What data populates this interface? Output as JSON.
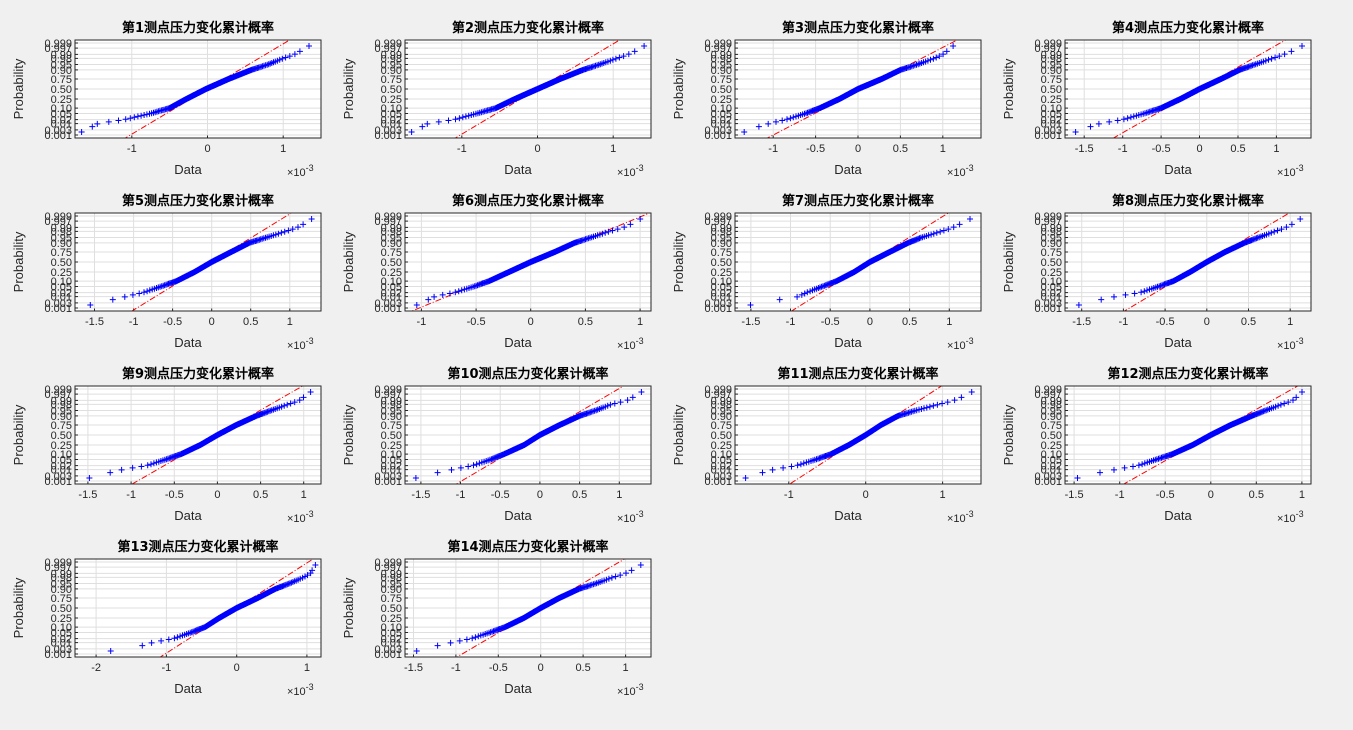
{
  "figure": {
    "background": "#f0f0f0",
    "axes_background": "#ffffff",
    "marker_color": "#0000ff",
    "ref_line_color": "#ff0000",
    "grid_color": "#dfdfdf"
  },
  "chart_data": [
    {
      "type": "scatter",
      "title": "第1测点压力变化累计概率",
      "xlabel": "Data",
      "ylabel": "Probability",
      "x_exponent": "×10",
      "x_exponent_power": "-3",
      "xlim": [
        -1.75,
        1.5
      ],
      "xticks": [
        -1,
        0,
        1
      ],
      "xticklabels": [
        "-1",
        "0",
        "1"
      ],
      "yticklabels": [
        "0.001",
        "0.003",
        "0.01",
        "0.02",
        "0.05",
        "0.10",
        "0.25",
        "0.50",
        "0.75",
        "0.90",
        "0.95",
        "0.98",
        "0.99",
        "0.997",
        "0.999"
      ],
      "quantiles": [
        -1.75,
        -1.6,
        -1.45,
        -1.1,
        -0.75,
        -0.5,
        -0.28,
        -0.02,
        0.28,
        0.58,
        0.8,
        1.0,
        1.15,
        1.3,
        1.4
      ],
      "ref_line": {
        "mean": 0.0,
        "sd": 0.33
      },
      "grid": true
    },
    {
      "type": "scatter",
      "title": "第2测点压力变化累计概率",
      "xlabel": "Data",
      "ylabel": "Probability",
      "x_exponent": "×10",
      "x_exponent_power": "-3",
      "xlim": [
        -1.75,
        1.5
      ],
      "xticks": [
        -1,
        0,
        1
      ],
      "xticklabels": [
        "-1",
        "0",
        "1"
      ],
      "yticklabels": [
        "0.001",
        "0.003",
        "0.01",
        "0.02",
        "0.05",
        "0.10",
        "0.25",
        "0.50",
        "0.75",
        "0.90",
        "0.95",
        "0.98",
        "0.99",
        "0.997",
        "0.999"
      ],
      "quantiles": [
        -1.75,
        -1.6,
        -1.45,
        -1.1,
        -0.8,
        -0.55,
        -0.3,
        0.0,
        0.3,
        0.6,
        0.82,
        1.05,
        1.2,
        1.38,
        1.45
      ],
      "ref_line": {
        "mean": 0.0,
        "sd": 0.33
      },
      "grid": true
    },
    {
      "type": "scatter",
      "title": "第3测点压力变化累计概率",
      "xlabel": "Data",
      "ylabel": "Probability",
      "x_exponent": "×10",
      "x_exponent_power": "-3",
      "xlim": [
        -1.45,
        1.45
      ],
      "xticks": [
        -1,
        -0.5,
        0,
        0.5,
        1
      ],
      "xticklabels": [
        "-1",
        "-0.5",
        "0",
        "0.5",
        "1"
      ],
      "yticklabels": [
        "0.001",
        "0.003",
        "0.01",
        "0.02",
        "0.05",
        "0.10",
        "0.25",
        "0.50",
        "0.75",
        "0.90",
        "0.95",
        "0.98",
        "0.99",
        "0.997",
        "0.999"
      ],
      "quantiles": [
        -1.4,
        -1.3,
        -1.05,
        -0.85,
        -0.62,
        -0.45,
        -0.22,
        0.0,
        0.28,
        0.5,
        0.7,
        0.9,
        1.0,
        1.1,
        1.15
      ],
      "ref_line": {
        "mean": 0.05,
        "sd": 0.34
      },
      "grid": true
    },
    {
      "type": "scatter",
      "title": "第4测点压力变化累计概率",
      "xlabel": "Data",
      "ylabel": "Probability",
      "x_exponent": "×10",
      "x_exponent_power": "-3",
      "xlim": [
        -1.75,
        1.45
      ],
      "xticks": [
        -1.5,
        -1,
        -0.5,
        0,
        0.5,
        1
      ],
      "xticklabels": [
        "-1.5",
        "-1",
        "-0.5",
        "0",
        "0.5",
        "1"
      ],
      "yticklabels": [
        "0.001",
        "0.003",
        "0.01",
        "0.02",
        "0.05",
        "0.10",
        "0.25",
        "0.50",
        "0.75",
        "0.90",
        "0.95",
        "0.98",
        "0.99",
        "0.997",
        "0.999"
      ],
      "quantiles": [
        -1.7,
        -1.55,
        -1.3,
        -1.0,
        -0.72,
        -0.5,
        -0.25,
        0.0,
        0.28,
        0.52,
        0.72,
        0.95,
        1.1,
        1.3,
        1.38
      ],
      "ref_line": {
        "mean": 0.0,
        "sd": 0.34
      },
      "grid": true
    },
    {
      "type": "scatter",
      "title": "第5测点压力变化累计概率",
      "xlabel": "Data",
      "ylabel": "Probability",
      "x_exponent": "×10",
      "x_exponent_power": "-3",
      "xlim": [
        -1.75,
        1.4
      ],
      "xticks": [
        -1.5,
        -1,
        -0.5,
        0,
        0.5,
        1
      ],
      "xticklabels": [
        "-1.5",
        "-1",
        "-0.5",
        "0",
        "0.5",
        "1"
      ],
      "yticklabels": [
        "0.001",
        "0.003",
        "0.01",
        "0.02",
        "0.05",
        "0.10",
        "0.25",
        "0.50",
        "0.75",
        "0.90",
        "0.95",
        "0.98",
        "0.99",
        "0.997",
        "0.999"
      ],
      "quantiles": [
        -1.7,
        -1.45,
        -1.1,
        -0.88,
        -0.65,
        -0.45,
        -0.22,
        0.0,
        0.25,
        0.48,
        0.7,
        0.95,
        1.1,
        1.25,
        1.32
      ],
      "ref_line": {
        "mean": 0.0,
        "sd": 0.31
      },
      "grid": true
    },
    {
      "type": "scatter",
      "title": "第6测点压力变化累计概率",
      "xlabel": "Data",
      "ylabel": "Probability",
      "x_exponent": "×10",
      "x_exponent_power": "-3",
      "xlim": [
        -1.15,
        1.1
      ],
      "xticks": [
        -1,
        -0.5,
        0,
        0.5,
        1
      ],
      "xticklabels": [
        "-1",
        "-0.5",
        "0",
        "0.5",
        "1"
      ],
      "yticklabels": [
        "0.001",
        "0.003",
        "0.01",
        "0.02",
        "0.05",
        "0.10",
        "0.25",
        "0.50",
        "0.75",
        "0.90",
        "0.95",
        "0.98",
        "0.99",
        "0.997",
        "0.999"
      ],
      "quantiles": [
        -1.1,
        -1.0,
        -0.88,
        -0.7,
        -0.52,
        -0.38,
        -0.2,
        0.0,
        0.22,
        0.4,
        0.55,
        0.72,
        0.85,
        0.98,
        1.03
      ],
      "ref_line": {
        "mean": 0.0,
        "sd": 0.33
      },
      "grid": true
    },
    {
      "type": "scatter",
      "title": "第7测点压力变化累计概率",
      "xlabel": "Data",
      "ylabel": "Probability",
      "x_exponent": "×10",
      "x_exponent_power": "-3",
      "xlim": [
        -1.7,
        1.4
      ],
      "xticks": [
        -1.5,
        -1,
        -0.5,
        0,
        0.5,
        1
      ],
      "xticklabels": [
        "-1.5",
        "-1",
        "-0.5",
        "0",
        "0.5",
        "1"
      ],
      "yticklabels": [
        "0.001",
        "0.003",
        "0.01",
        "0.02",
        "0.05",
        "0.10",
        "0.25",
        "0.50",
        "0.75",
        "0.90",
        "0.95",
        "0.98",
        "0.99",
        "0.997",
        "0.999"
      ],
      "quantiles": [
        -1.65,
        -1.4,
        -0.9,
        -0.8,
        -0.6,
        -0.42,
        -0.2,
        0.0,
        0.25,
        0.48,
        0.65,
        0.9,
        1.05,
        1.22,
        1.32
      ],
      "ref_line": {
        "mean": 0.0,
        "sd": 0.3
      },
      "grid": true
    },
    {
      "type": "scatter",
      "title": "第8测点压力变化累计概率",
      "xlabel": "Data",
      "ylabel": "Probability",
      "x_exponent": "×10",
      "x_exponent_power": "-3",
      "xlim": [
        -1.7,
        1.25
      ],
      "xticks": [
        -1.5,
        -1,
        -0.5,
        0,
        0.5,
        1
      ],
      "xticklabels": [
        "-1.5",
        "-1",
        "-0.5",
        "0",
        "0.5",
        "1"
      ],
      "yticklabels": [
        "0.001",
        "0.003",
        "0.01",
        "0.02",
        "0.05",
        "0.10",
        "0.25",
        "0.50",
        "0.75",
        "0.90",
        "0.95",
        "0.98",
        "0.99",
        "0.997",
        "0.999"
      ],
      "quantiles": [
        -1.65,
        -1.45,
        -1.1,
        -0.8,
        -0.58,
        -0.4,
        -0.2,
        0.0,
        0.22,
        0.45,
        0.62,
        0.82,
        0.95,
        1.1,
        1.15
      ],
      "ref_line": {
        "mean": 0.0,
        "sd": 0.3
      },
      "grid": true
    },
    {
      "type": "scatter",
      "title": "第9测点压力变化累计概率",
      "xlabel": "Data",
      "ylabel": "Probability",
      "x_exponent": "×10",
      "x_exponent_power": "-3",
      "xlim": [
        -1.65,
        1.2
      ],
      "xticks": [
        -1.5,
        -1,
        -0.5,
        0,
        0.5,
        1
      ],
      "xticklabels": [
        "-1.5",
        "-1",
        "-0.5",
        "0",
        "0.5",
        "1"
      ],
      "yticklabels": [
        "0.001",
        "0.003",
        "0.01",
        "0.02",
        "0.05",
        "0.10",
        "0.25",
        "0.50",
        "0.75",
        "0.90",
        "0.95",
        "0.98",
        "0.99",
        "0.997",
        "0.999"
      ],
      "quantiles": [
        -1.6,
        -1.4,
        -1.1,
        -0.82,
        -0.6,
        -0.42,
        -0.2,
        0.0,
        0.22,
        0.45,
        0.62,
        0.82,
        0.95,
        1.05,
        1.12
      ],
      "ref_line": {
        "mean": 0.0,
        "sd": 0.3
      },
      "grid": true
    },
    {
      "type": "scatter",
      "title": "第10测点压力变化累计概率",
      "xlabel": "Data",
      "ylabel": "Probability",
      "x_exponent": "×10",
      "x_exponent_power": "-3",
      "xlim": [
        -1.7,
        1.4
      ],
      "xticks": [
        -1.5,
        -1,
        -0.5,
        0,
        0.5,
        1
      ],
      "xticklabels": [
        "-1.5",
        "-1",
        "-0.5",
        "0",
        "0.5",
        "1"
      ],
      "yticklabels": [
        "0.001",
        "0.003",
        "0.01",
        "0.02",
        "0.05",
        "0.10",
        "0.25",
        "0.50",
        "0.75",
        "0.90",
        "0.95",
        "0.98",
        "0.99",
        "0.997",
        "0.999"
      ],
      "quantiles": [
        -1.65,
        -1.5,
        -1.1,
        -0.85,
        -0.62,
        -0.45,
        -0.2,
        0.0,
        0.25,
        0.5,
        0.7,
        0.9,
        1.1,
        1.25,
        1.32
      ],
      "ref_line": {
        "mean": 0.0,
        "sd": 0.32
      },
      "grid": true
    },
    {
      "type": "scatter",
      "title": "第11测点压力变化累计概率",
      "xlabel": "Data",
      "ylabel": "Probability",
      "x_exponent": "×10",
      "x_exponent_power": "-3",
      "xlim": [
        -1.7,
        1.5
      ],
      "xticks": [
        -1,
        0,
        1
      ],
      "xticklabels": [
        "-1",
        "0",
        "1"
      ],
      "yticklabels": [
        "0.001",
        "0.003",
        "0.01",
        "0.02",
        "0.05",
        "0.10",
        "0.25",
        "0.50",
        "0.75",
        "0.90",
        "0.95",
        "0.98",
        "0.99",
        "0.997",
        "0.999"
      ],
      "quantiles": [
        -1.65,
        -1.5,
        -1.2,
        -0.9,
        -0.65,
        -0.45,
        -0.22,
        0.0,
        0.2,
        0.42,
        0.65,
        0.95,
        1.15,
        1.35,
        1.42
      ],
      "ref_line": {
        "mean": 0.0,
        "sd": 0.3
      },
      "grid": true
    },
    {
      "type": "scatter",
      "title": "第12测点压力变化累计概率",
      "xlabel": "Data",
      "ylabel": "Probability",
      "x_exponent": "×10",
      "x_exponent_power": "-3",
      "xlim": [
        -1.6,
        1.1
      ],
      "xticks": [
        -1.5,
        -1,
        -0.5,
        0,
        0.5,
        1
      ],
      "xticklabels": [
        "-1.5",
        "-1",
        "-0.5",
        "0",
        "0.5",
        "1"
      ],
      "yticklabels": [
        "0.001",
        "0.003",
        "0.01",
        "0.02",
        "0.05",
        "0.10",
        "0.25",
        "0.50",
        "0.75",
        "0.90",
        "0.95",
        "0.98",
        "0.99",
        "0.997",
        "0.999"
      ],
      "quantiles": [
        -1.55,
        -1.4,
        -1.05,
        -0.8,
        -0.6,
        -0.42,
        -0.2,
        0.0,
        0.22,
        0.45,
        0.6,
        0.78,
        0.9,
        0.98,
        1.03
      ],
      "ref_line": {
        "mean": 0.0,
        "sd": 0.29
      },
      "grid": true
    },
    {
      "type": "scatter",
      "title": "第13测点压力变化累计概率",
      "xlabel": "Data",
      "ylabel": "Probability",
      "x_exponent": "×10",
      "x_exponent_power": "-3",
      "xlim": [
        -2.3,
        1.2
      ],
      "xticks": [
        -2,
        -1,
        0,
        1
      ],
      "xticklabels": [
        "-2",
        "-1",
        "0",
        "1"
      ],
      "yticklabels": [
        "0.001",
        "0.003",
        "0.01",
        "0.02",
        "0.05",
        "0.10",
        "0.25",
        "0.50",
        "0.75",
        "0.90",
        "0.95",
        "0.98",
        "0.99",
        "0.997",
        "0.999"
      ],
      "quantiles": [
        -2.2,
        -1.5,
        -1.2,
        -0.9,
        -0.65,
        -0.45,
        -0.25,
        0.0,
        0.3,
        0.55,
        0.75,
        0.95,
        1.05,
        1.1,
        1.15
      ],
      "ref_line": {
        "mean": 0.0,
        "sd": 0.33
      },
      "grid": true
    },
    {
      "type": "scatter",
      "title": "第14测点压力变化累计概率",
      "xlabel": "Data",
      "ylabel": "Probability",
      "x_exponent": "×10",
      "x_exponent_power": "-3",
      "xlim": [
        -1.6,
        1.3
      ],
      "xticks": [
        -1.5,
        -1,
        -0.5,
        0,
        0.5,
        1
      ],
      "xticklabels": [
        "-1.5",
        "-1",
        "-0.5",
        "0",
        "0.5",
        "1"
      ],
      "yticklabels": [
        "0.001",
        "0.003",
        "0.01",
        "0.02",
        "0.05",
        "0.10",
        "0.25",
        "0.50",
        "0.75",
        "0.90",
        "0.95",
        "0.98",
        "0.99",
        "0.997",
        "0.999"
      ],
      "quantiles": [
        -1.55,
        -1.4,
        -1.05,
        -0.82,
        -0.6,
        -0.42,
        -0.2,
        0.0,
        0.22,
        0.45,
        0.65,
        0.85,
        1.0,
        1.15,
        1.22
      ],
      "ref_line": {
        "mean": 0.0,
        "sd": 0.3
      },
      "grid": true
    }
  ]
}
